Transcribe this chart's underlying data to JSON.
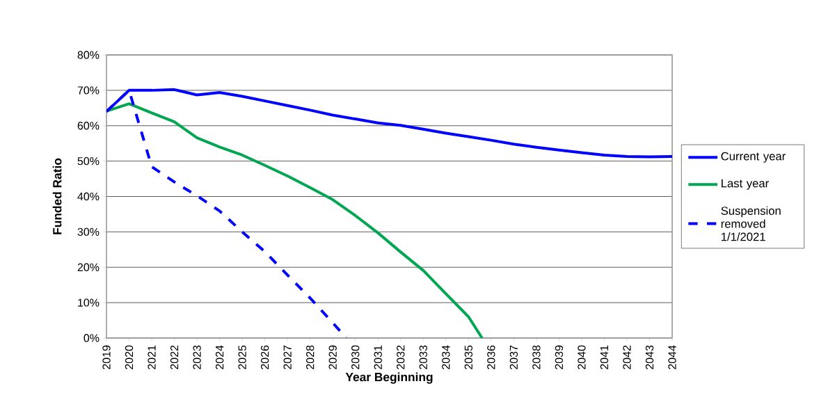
{
  "chart_data": {
    "type": "line",
    "xlabel": "Year Beginning",
    "ylabel": "Funded Ratio",
    "xlim": [
      2019,
      2044
    ],
    "ylim": [
      0,
      80
    ],
    "xticks": [
      2019,
      2020,
      2021,
      2022,
      2023,
      2024,
      2025,
      2026,
      2027,
      2028,
      2029,
      2030,
      2031,
      2032,
      2033,
      2034,
      2035,
      2036,
      2037,
      2038,
      2039,
      2040,
      2041,
      2042,
      2043,
      2044
    ],
    "yticks": [
      {
        "value": 0,
        "label": "0%"
      },
      {
        "value": 10,
        "label": "10%"
      },
      {
        "value": 20,
        "label": "20%"
      },
      {
        "value": 30,
        "label": "30%"
      },
      {
        "value": 40,
        "label": "40%"
      },
      {
        "value": 50,
        "label": "50%"
      },
      {
        "value": 60,
        "label": "60%"
      },
      {
        "value": 70,
        "label": "70%"
      },
      {
        "value": 80,
        "label": "80%"
      }
    ],
    "grid": "y",
    "legend": "right",
    "series": [
      {
        "name": "Current year",
        "color": "#0000ff",
        "line_style": "solid",
        "x": [
          2019,
          2020,
          2021,
          2022,
          2023,
          2024,
          2025,
          2026,
          2027,
          2028,
          2029,
          2030,
          2031,
          2032,
          2033,
          2034,
          2035,
          2036,
          2037,
          2038,
          2039,
          2040,
          2041,
          2042,
          2043,
          2044
        ],
        "values": [
          64,
          70,
          70,
          70.2,
          68.7,
          69.4,
          68.3,
          67,
          65.7,
          64.4,
          63,
          61.9,
          60.8,
          60.1,
          59,
          57.9,
          56.9,
          55.9,
          54.8,
          53.9,
          53.1,
          52.4,
          51.7,
          51.3,
          51.2,
          51.3
        ]
      },
      {
        "name": "Last year",
        "color": "#00a651",
        "line_style": "solid",
        "x": [
          2019,
          2020,
          2021,
          2022,
          2023,
          2024,
          2025,
          2026,
          2027,
          2028,
          2029,
          2030,
          2031,
          2032,
          2033,
          2034,
          2035,
          2035.6
        ],
        "values": [
          64.1,
          66.2,
          63.6,
          61.1,
          56.6,
          54,
          51.7,
          48.8,
          45.8,
          42.5,
          39.1,
          34.6,
          29.7,
          24.3,
          19.1,
          12.5,
          6,
          0
        ]
      },
      {
        "name": "Suspension removed 1/1/2021",
        "color": "#0000ff",
        "line_style": "dashed",
        "x": [
          2019,
          2020,
          2021,
          2022,
          2023,
          2024,
          2025,
          2026,
          2027,
          2028,
          2029,
          2029.6
        ],
        "values": [
          64,
          70,
          48.4,
          44.1,
          40.2,
          35.9,
          30,
          24.4,
          17.8,
          11.3,
          4.3,
          0
        ]
      }
    ]
  }
}
